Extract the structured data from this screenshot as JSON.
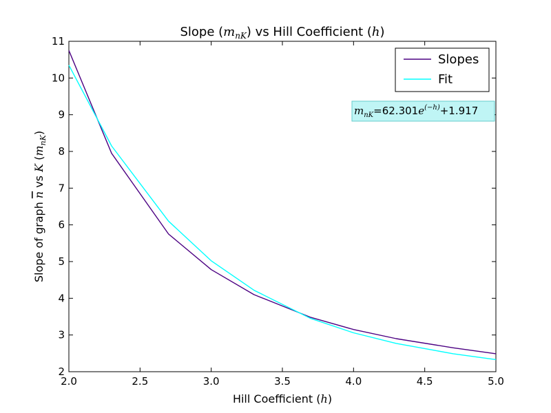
{
  "chart_data": {
    "type": "line",
    "title": {
      "prefix": "Slope (",
      "math": "m",
      "math_sub": "nK",
      "middle": ") vs Hill Coefficient (",
      "math2": "h",
      "suffix": ")"
    },
    "xlabel": {
      "prefix": "Hill Coefficient (",
      "math": "h",
      "suffix": ")"
    },
    "ylabel": {
      "prefix": "Slope of graph ",
      "math1": "n",
      "middle": " vs ",
      "math2": "K",
      "paren_open": " (",
      "math3": "m",
      "math3_sub": "nK",
      "paren_close": ")"
    },
    "xlim": [
      2.0,
      5.0
    ],
    "ylim": [
      2,
      11
    ],
    "xticks": [
      "2.0",
      "2.5",
      "3.0",
      "3.5",
      "4.0",
      "4.5",
      "5.0"
    ],
    "yticks": [
      "2",
      "3",
      "4",
      "5",
      "6",
      "7",
      "8",
      "9",
      "10",
      "11"
    ],
    "grid": false,
    "legend_position": "top-right",
    "series": [
      {
        "name": "Slopes",
        "color": "#4b0082",
        "x": [
          2.0,
          2.3,
          2.7,
          3.0,
          3.3,
          3.7,
          4.0,
          4.3,
          4.7,
          5.0
        ],
        "y": [
          10.75,
          7.95,
          5.75,
          4.78,
          4.1,
          3.48,
          3.15,
          2.9,
          2.65,
          2.49
        ]
      },
      {
        "name": "Fit",
        "color": "#00ffff",
        "x": [
          2.0,
          2.3,
          2.7,
          3.0,
          3.3,
          3.7,
          4.0,
          4.3,
          4.7,
          5.0
        ],
        "y": [
          10.35,
          8.15,
          6.1,
          5.02,
          4.22,
          3.45,
          3.06,
          2.77,
          2.49,
          2.33
        ]
      }
    ],
    "annotation": {
      "math": "m",
      "math_sub": "nK",
      "eq": "=62.301",
      "exp_base": "e",
      "exp_power": "(−h)",
      "tail": "+1.917",
      "bg_color": "#bff5f5",
      "border_color": "#66cccc"
    }
  }
}
